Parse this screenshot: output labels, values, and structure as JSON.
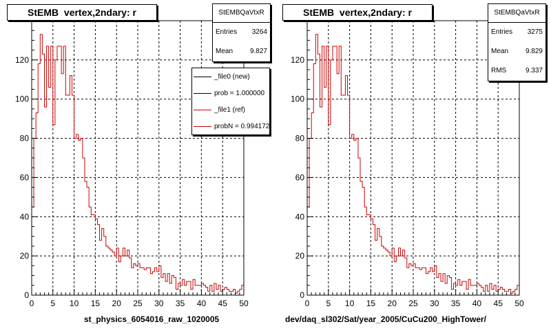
{
  "chart_data": [
    {
      "type": "line",
      "title": "StEMB  vertex,2ndary: r",
      "xlabel": "st_physics_6054016_raw_1020005",
      "ylabel": "",
      "xlim": [
        0,
        50
      ],
      "ylim": [
        0,
        140
      ],
      "grid": true,
      "x_ticks": [
        0,
        5,
        10,
        15,
        20,
        25,
        30,
        35,
        40,
        45,
        50
      ],
      "y_ticks": [
        0,
        20,
        40,
        60,
        80,
        100,
        120
      ],
      "bin_width": 0.5,
      "stats": {
        "name": "StEMBQaVtxR",
        "rows": [
          {
            "label": "Entries",
            "value": "3264"
          },
          {
            "label": "Mean",
            "value": "9.827"
          }
        ]
      },
      "legend": {
        "position": "top-right",
        "entries": [
          {
            "label": "_file0 (new)",
            "color": "#000000"
          },
          {
            "label": "prob = 1.000000",
            "color": "#000000"
          },
          {
            "label": "_file1 (ref)",
            "color": "#cc0000"
          },
          {
            "label": "probN = 0.994172",
            "color": "#cc0000"
          }
        ]
      },
      "series": [
        {
          "color": "#cc0000",
          "values": [
            45,
            80,
            93,
            118,
            133,
            123,
            96,
            127,
            106,
            127,
            87,
            120,
            127,
            127,
            113,
            127,
            102,
            102,
            112,
            102,
            80,
            82,
            79,
            80,
            70,
            58,
            55,
            45,
            41,
            41,
            39,
            36,
            28,
            34,
            30,
            25,
            24,
            23,
            22,
            20,
            24,
            17,
            20,
            24,
            20,
            23,
            19,
            14,
            16,
            15,
            16,
            14,
            14,
            13,
            14,
            14,
            11,
            12,
            14,
            12,
            15,
            9,
            11,
            7,
            11,
            6,
            10,
            9,
            3,
            6,
            5,
            8,
            5,
            7,
            7,
            3,
            8,
            5,
            5,
            5,
            6,
            5,
            4,
            2,
            5,
            2,
            6,
            3,
            5,
            2,
            3,
            4,
            3,
            2,
            2,
            3,
            1,
            2,
            3,
            5
          ]
        }
      ]
    },
    {
      "type": "line",
      "title": "StEMB  vertex,2ndary: r",
      "xlabel": "dev/daq_sl302/Sat/year_2005/CuCu200_HighTower/",
      "ylabel": "",
      "xlim": [
        0,
        50
      ],
      "ylim": [
        0,
        140
      ],
      "grid": true,
      "x_ticks": [
        0,
        5,
        10,
        15,
        20,
        25,
        30,
        35,
        40,
        45,
        50
      ],
      "y_ticks": [
        0,
        20,
        40,
        60,
        80,
        100,
        120
      ],
      "bin_width": 0.5,
      "stats": {
        "name": "StEMBQaVtxR",
        "rows": [
          {
            "label": "Entries",
            "value": "3275"
          },
          {
            "label": "Mean",
            "value": "9.829"
          },
          {
            "label": "RMS",
            "value": "9.337"
          }
        ]
      },
      "series": [
        {
          "color": "#cc0000",
          "values": [
            45,
            80,
            93,
            118,
            133,
            123,
            96,
            127,
            106,
            127,
            87,
            120,
            127,
            127,
            113,
            127,
            102,
            102,
            112,
            102,
            80,
            82,
            79,
            80,
            70,
            58,
            55,
            45,
            41,
            41,
            39,
            36,
            28,
            34,
            30,
            25,
            24,
            23,
            22,
            20,
            24,
            17,
            20,
            24,
            20,
            23,
            19,
            14,
            16,
            15,
            16,
            14,
            14,
            13,
            14,
            14,
            11,
            12,
            14,
            12,
            15,
            9,
            11,
            7,
            11,
            6,
            10,
            9,
            3,
            6,
            5,
            8,
            5,
            7,
            7,
            3,
            8,
            5,
            5,
            5,
            6,
            5,
            4,
            2,
            5,
            2,
            6,
            3,
            5,
            2,
            3,
            4,
            3,
            2,
            2,
            3,
            1,
            2,
            3,
            5
          ]
        }
      ]
    }
  ]
}
